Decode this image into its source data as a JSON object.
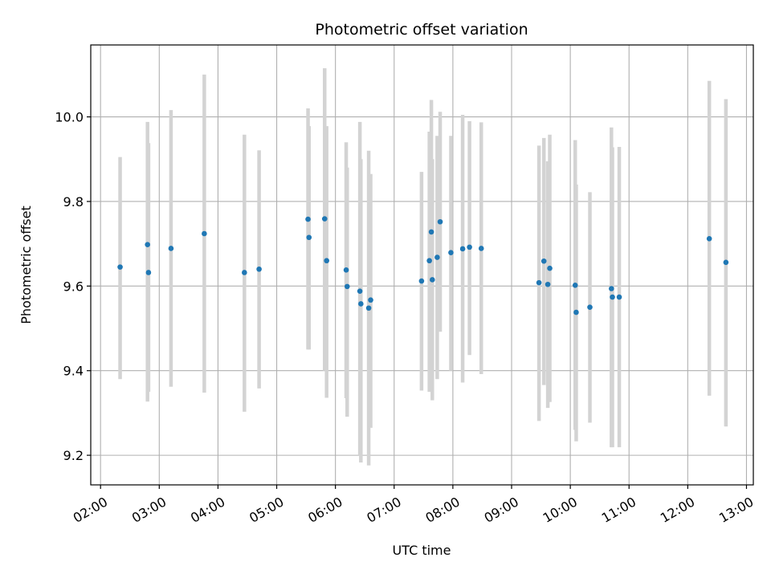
{
  "chart_data": {
    "type": "scatter",
    "title": "Photometric offset variation",
    "xlabel": "UTC time",
    "ylabel": "Photometric offset",
    "xlim": [
      "01:50",
      "13:07"
    ],
    "ylim": [
      9.13,
      10.17
    ],
    "xticks": [
      "02:00",
      "03:00",
      "04:00",
      "05:00",
      "06:00",
      "07:00",
      "08:00",
      "09:00",
      "10:00",
      "11:00",
      "12:00",
      "13:00"
    ],
    "yticks": [
      "9.2",
      "9.4",
      "9.6",
      "9.8",
      "10.0"
    ],
    "grid": true,
    "colors": {
      "point": "#1f77b4",
      "errorbar": "#d3d3d3"
    },
    "series": [
      {
        "points": [
          {
            "x": "02:20",
            "y": 9.645,
            "ylo": 9.38,
            "yhi": 9.905
          },
          {
            "x": "02:48",
            "y": 9.698,
            "ylo": 9.327,
            "yhi": 9.988
          },
          {
            "x": "02:49",
            "y": 9.632,
            "ylo": 9.35,
            "yhi": 9.938
          },
          {
            "x": "03:12",
            "y": 9.689,
            "ylo": 9.362,
            "yhi": 10.016
          },
          {
            "x": "03:46",
            "y": 9.724,
            "ylo": 9.348,
            "yhi": 10.1
          },
          {
            "x": "04:27",
            "y": 9.632,
            "ylo": 9.303,
            "yhi": 9.958
          },
          {
            "x": "04:42",
            "y": 9.64,
            "ylo": 9.358,
            "yhi": 9.921
          },
          {
            "x": "05:32",
            "y": 9.758,
            "ylo": 9.45,
            "yhi": 10.02
          },
          {
            "x": "05:33",
            "y": 9.715,
            "ylo": 9.45,
            "yhi": 9.978
          },
          {
            "x": "05:49",
            "y": 9.759,
            "ylo": 9.4,
            "yhi": 10.115
          },
          {
            "x": "05:51",
            "y": 9.66,
            "ylo": 9.336,
            "yhi": 9.978
          },
          {
            "x": "06:11",
            "y": 9.638,
            "ylo": 9.335,
            "yhi": 9.94
          },
          {
            "x": "06:12",
            "y": 9.599,
            "ylo": 9.291,
            "yhi": 9.88
          },
          {
            "x": "06:25",
            "y": 9.588,
            "ylo": 9.2,
            "yhi": 9.988
          },
          {
            "x": "06:26",
            "y": 9.558,
            "ylo": 9.183,
            "yhi": 9.9
          },
          {
            "x": "06:34",
            "y": 9.548,
            "ylo": 9.176,
            "yhi": 9.92
          },
          {
            "x": "06:36",
            "y": 9.567,
            "ylo": 9.265,
            "yhi": 9.865
          },
          {
            "x": "07:28",
            "y": 9.612,
            "ylo": 9.353,
            "yhi": 9.87
          },
          {
            "x": "07:36",
            "y": 9.66,
            "ylo": 9.35,
            "yhi": 9.965
          },
          {
            "x": "07:38",
            "y": 9.728,
            "ylo": 9.4,
            "yhi": 10.04
          },
          {
            "x": "07:39",
            "y": 9.615,
            "ylo": 9.33,
            "yhi": 9.9
          },
          {
            "x": "07:44",
            "y": 9.668,
            "ylo": 9.38,
            "yhi": 9.955
          },
          {
            "x": "07:47",
            "y": 9.752,
            "ylo": 9.492,
            "yhi": 10.012
          },
          {
            "x": "07:58",
            "y": 9.679,
            "ylo": 9.4,
            "yhi": 9.955
          },
          {
            "x": "08:10",
            "y": 9.688,
            "ylo": 9.372,
            "yhi": 10.005
          },
          {
            "x": "08:17",
            "y": 9.692,
            "ylo": 9.437,
            "yhi": 9.99
          },
          {
            "x": "08:29",
            "y": 9.689,
            "ylo": 9.392,
            "yhi": 9.987
          },
          {
            "x": "09:28",
            "y": 9.608,
            "ylo": 9.281,
            "yhi": 9.932
          },
          {
            "x": "09:33",
            "y": 9.659,
            "ylo": 9.366,
            "yhi": 9.95
          },
          {
            "x": "09:37",
            "y": 9.604,
            "ylo": 9.312,
            "yhi": 9.895
          },
          {
            "x": "09:39",
            "y": 9.642,
            "ylo": 9.326,
            "yhi": 9.958
          },
          {
            "x": "10:05",
            "y": 9.602,
            "ylo": 9.26,
            "yhi": 9.945
          },
          {
            "x": "10:06",
            "y": 9.538,
            "ylo": 9.233,
            "yhi": 9.84
          },
          {
            "x": "10:20",
            "y": 9.55,
            "ylo": 9.277,
            "yhi": 9.822
          },
          {
            "x": "10:42",
            "y": 9.594,
            "ylo": 9.219,
            "yhi": 9.975
          },
          {
            "x": "10:43",
            "y": 9.574,
            "ylo": 9.219,
            "yhi": 9.928
          },
          {
            "x": "10:50",
            "y": 9.574,
            "ylo": 9.219,
            "yhi": 9.929
          },
          {
            "x": "12:22",
            "y": 9.712,
            "ylo": 9.341,
            "yhi": 10.085
          },
          {
            "x": "12:39",
            "y": 9.656,
            "ylo": 9.268,
            "yhi": 10.042
          }
        ]
      }
    ]
  }
}
